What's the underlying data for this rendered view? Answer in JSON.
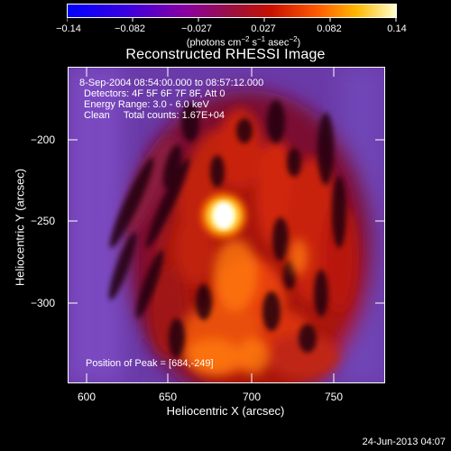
{
  "title": "Reconstructed RHESSI Image",
  "colorbar": {
    "tick_labels": [
      "−0.14",
      "−0.082",
      "−0.027",
      "0.027",
      "0.082",
      "0.14"
    ],
    "unit_prefix": "(photons cm",
    "unit_exp1": "−2",
    "unit_mid": " s",
    "unit_exp2": "−1",
    "unit_mid2": " asec",
    "unit_exp3": "−2",
    "unit_suffix": ")"
  },
  "info": {
    "time_range": "8-Sep-2004 08:54:00.000 to 08:57:12.000",
    "detectors": "Detectors: 4F 5F 6F 7F 8F, Att 0",
    "energy": "Energy Range: 3.0 - 6.0 keV",
    "clean": "Clean     Total counts: 1.67E+04",
    "peak": "Position of Peak = [684,-249]"
  },
  "axes": {
    "xlabel": "Heliocentric X (arcsec)",
    "ylabel": "Heliocentric Y (arcsec)",
    "x_ticks": [
      "600",
      "650",
      "700",
      "750"
    ],
    "y_ticks": [
      "−200",
      "−250",
      "−300"
    ]
  },
  "timestamp": "24-Jun-2013 04:07",
  "colors": {
    "background": "#000000",
    "map_low": "#7a3fb0",
    "map_mid": "#c81e10",
    "map_high": "#ffffff"
  }
}
